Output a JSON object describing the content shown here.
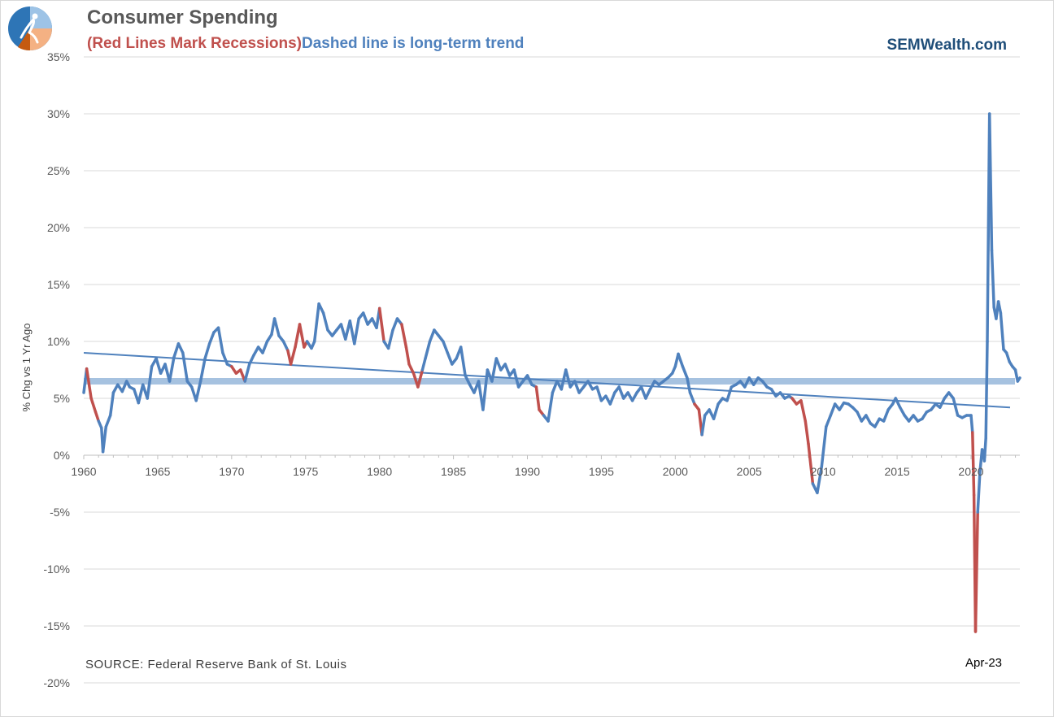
{
  "header": {
    "title": "Consumer Spending",
    "subtitle_red": "(Red Lines Mark Recessions)",
    "subtitle_blue": "Dashed line is long-term trend",
    "brand": "SEMWealth.com"
  },
  "footer": {
    "source": "SOURCE:  Federal Reserve Bank of St. Louis",
    "end_label": "Apr-23"
  },
  "colors": {
    "main_line": "#4f81bd",
    "recession_line": "#c0504d",
    "band": "#a6c2e0",
    "gridline": "#d9d9d9",
    "axis_text": "#595959"
  },
  "chart_data": {
    "type": "line",
    "title": "Consumer Spending",
    "ylabel": "% Chg vs 1 Yr Ago",
    "xlabel": "",
    "xlim": [
      1960,
      2023.3
    ],
    "ylim": [
      -20,
      35
    ],
    "y_ticks": [
      -20,
      -15,
      -10,
      -5,
      0,
      5,
      10,
      15,
      20,
      25,
      30,
      35
    ],
    "y_tick_labels": [
      "-20%",
      "-15%",
      "-10%",
      "-5%",
      "0%",
      "5%",
      "10%",
      "15%",
      "20%",
      "25%",
      "30%",
      "35%"
    ],
    "x_ticks": [
      1960,
      1965,
      1970,
      1975,
      1980,
      1985,
      1990,
      1995,
      2000,
      2005,
      2010,
      2015,
      2020
    ],
    "x_tick_labels": [
      "1960",
      "1965",
      "1970",
      "1975",
      "1980",
      "1985",
      "1990",
      "1995",
      "2000",
      "2005",
      "2010",
      "2015",
      "2020"
    ],
    "grid": true,
    "series": [
      {
        "style": "main",
        "points": [
          [
            1960.0,
            5.5
          ],
          [
            1960.2,
            7.6
          ],
          [
            1960.5,
            5.0
          ],
          [
            1960.8,
            3.8
          ],
          [
            1961.0,
            3.0
          ],
          [
            1961.2,
            2.4
          ],
          [
            1961.3,
            0.3
          ],
          [
            1961.5,
            2.5
          ],
          [
            1961.8,
            3.5
          ],
          [
            1962.0,
            5.5
          ],
          [
            1962.3,
            6.2
          ],
          [
            1962.6,
            5.6
          ],
          [
            1962.9,
            6.5
          ],
          [
            1963.1,
            6.0
          ],
          [
            1963.4,
            5.8
          ],
          [
            1963.7,
            4.6
          ],
          [
            1964.0,
            6.2
          ],
          [
            1964.3,
            5.0
          ],
          [
            1964.6,
            7.8
          ],
          [
            1964.9,
            8.5
          ],
          [
            1965.2,
            7.2
          ],
          [
            1965.5,
            8.0
          ],
          [
            1965.8,
            6.5
          ],
          [
            1966.1,
            8.6
          ],
          [
            1966.4,
            9.8
          ],
          [
            1966.7,
            9.0
          ],
          [
            1967.0,
            6.5
          ],
          [
            1967.3,
            6.0
          ],
          [
            1967.6,
            4.8
          ],
          [
            1967.9,
            6.5
          ],
          [
            1968.2,
            8.5
          ],
          [
            1968.5,
            9.8
          ],
          [
            1968.8,
            10.8
          ],
          [
            1969.1,
            11.2
          ],
          [
            1969.4,
            9.0
          ],
          [
            1969.7,
            8.0
          ],
          [
            1970.0,
            7.8
          ],
          [
            1970.3,
            7.2
          ],
          [
            1970.6,
            7.5
          ],
          [
            1970.9,
            6.5
          ],
          [
            1971.2,
            8.0
          ],
          [
            1971.5,
            8.8
          ],
          [
            1971.8,
            9.5
          ],
          [
            1972.1,
            9.0
          ],
          [
            1972.4,
            10.0
          ],
          [
            1972.7,
            10.6
          ],
          [
            1972.9,
            12.0
          ],
          [
            1973.2,
            10.5
          ],
          [
            1973.5,
            10.0
          ],
          [
            1973.8,
            9.2
          ],
          [
            1974.0,
            8.0
          ],
          [
            1974.3,
            9.5
          ],
          [
            1974.6,
            11.5
          ],
          [
            1974.9,
            9.5
          ],
          [
            1975.1,
            10.0
          ],
          [
            1975.4,
            9.4
          ],
          [
            1975.6,
            10.0
          ],
          [
            1975.9,
            13.3
          ],
          [
            1976.2,
            12.5
          ],
          [
            1976.5,
            11.0
          ],
          [
            1976.8,
            10.5
          ],
          [
            1977.1,
            11.0
          ],
          [
            1977.4,
            11.5
          ],
          [
            1977.7,
            10.2
          ],
          [
            1978.0,
            11.8
          ],
          [
            1978.3,
            9.8
          ],
          [
            1978.6,
            12.0
          ],
          [
            1978.9,
            12.5
          ],
          [
            1979.2,
            11.5
          ],
          [
            1979.5,
            12.0
          ],
          [
            1979.8,
            11.2
          ],
          [
            1980.0,
            12.9
          ],
          [
            1980.3,
            10.0
          ],
          [
            1980.6,
            9.4
          ],
          [
            1980.9,
            11.0
          ],
          [
            1981.2,
            12.0
          ],
          [
            1981.5,
            11.5
          ],
          [
            1981.8,
            9.5
          ],
          [
            1982.0,
            8.0
          ],
          [
            1982.3,
            7.2
          ],
          [
            1982.6,
            6.0
          ],
          [
            1982.9,
            7.5
          ],
          [
            1983.1,
            8.5
          ],
          [
            1983.4,
            10.0
          ],
          [
            1983.7,
            11.0
          ],
          [
            1984.0,
            10.5
          ],
          [
            1984.3,
            10.0
          ],
          [
            1984.6,
            9.0
          ],
          [
            1984.9,
            8.0
          ],
          [
            1985.2,
            8.5
          ],
          [
            1985.5,
            9.5
          ],
          [
            1985.8,
            7.0
          ],
          [
            1986.1,
            6.2
          ],
          [
            1986.4,
            5.5
          ],
          [
            1986.7,
            6.5
          ],
          [
            1987.0,
            4.0
          ],
          [
            1987.3,
            7.5
          ],
          [
            1987.6,
            6.5
          ],
          [
            1987.9,
            8.5
          ],
          [
            1988.2,
            7.5
          ],
          [
            1988.5,
            8.0
          ],
          [
            1988.8,
            7.0
          ],
          [
            1989.1,
            7.5
          ],
          [
            1989.4,
            6.0
          ],
          [
            1989.7,
            6.5
          ],
          [
            1990.0,
            7.0
          ],
          [
            1990.3,
            6.2
          ],
          [
            1990.6,
            6.0
          ],
          [
            1990.8,
            4.0
          ],
          [
            1991.1,
            3.5
          ],
          [
            1991.4,
            3.0
          ],
          [
            1991.7,
            5.5
          ],
          [
            1992.0,
            6.5
          ],
          [
            1992.3,
            5.8
          ],
          [
            1992.6,
            7.5
          ],
          [
            1992.9,
            6.0
          ],
          [
            1993.2,
            6.5
          ],
          [
            1993.5,
            5.5
          ],
          [
            1993.8,
            6.0
          ],
          [
            1994.1,
            6.5
          ],
          [
            1994.4,
            5.8
          ],
          [
            1994.7,
            6.0
          ],
          [
            1995.0,
            4.8
          ],
          [
            1995.3,
            5.2
          ],
          [
            1995.6,
            4.5
          ],
          [
            1995.9,
            5.5
          ],
          [
            1996.2,
            6.0
          ],
          [
            1996.5,
            5.0
          ],
          [
            1996.8,
            5.5
          ],
          [
            1997.1,
            4.8
          ],
          [
            1997.4,
            5.5
          ],
          [
            1997.7,
            6.0
          ],
          [
            1998.0,
            5.0
          ],
          [
            1998.3,
            5.8
          ],
          [
            1998.6,
            6.5
          ],
          [
            1998.9,
            6.2
          ],
          [
            1999.2,
            6.5
          ],
          [
            1999.5,
            6.8
          ],
          [
            1999.8,
            7.2
          ],
          [
            2000.0,
            7.8
          ],
          [
            2000.2,
            8.9
          ],
          [
            2000.5,
            7.8
          ],
          [
            2000.8,
            6.8
          ],
          [
            2001.0,
            5.5
          ],
          [
            2001.3,
            4.5
          ],
          [
            2001.6,
            4.0
          ],
          [
            2001.8,
            1.8
          ],
          [
            2002.0,
            3.5
          ],
          [
            2002.3,
            4.0
          ],
          [
            2002.6,
            3.2
          ],
          [
            2002.9,
            4.5
          ],
          [
            2003.2,
            5.0
          ],
          [
            2003.5,
            4.8
          ],
          [
            2003.8,
            6.0
          ],
          [
            2004.1,
            6.2
          ],
          [
            2004.4,
            6.5
          ],
          [
            2004.7,
            6.0
          ],
          [
            2005.0,
            6.8
          ],
          [
            2005.3,
            6.2
          ],
          [
            2005.6,
            6.8
          ],
          [
            2005.9,
            6.5
          ],
          [
            2006.2,
            6.0
          ],
          [
            2006.5,
            5.8
          ],
          [
            2006.8,
            5.2
          ],
          [
            2007.1,
            5.5
          ],
          [
            2007.4,
            5.0
          ],
          [
            2007.7,
            5.2
          ],
          [
            2007.9,
            5.0
          ],
          [
            2008.2,
            4.5
          ],
          [
            2008.5,
            4.8
          ],
          [
            2008.8,
            3.0
          ],
          [
            2009.0,
            1.0
          ],
          [
            2009.3,
            -2.5
          ],
          [
            2009.6,
            -3.3
          ],
          [
            2009.9,
            -1.0
          ],
          [
            2010.2,
            2.5
          ],
          [
            2010.5,
            3.5
          ],
          [
            2010.8,
            4.5
          ],
          [
            2011.1,
            4.0
          ],
          [
            2011.4,
            4.6
          ],
          [
            2011.7,
            4.5
          ],
          [
            2012.0,
            4.2
          ],
          [
            2012.3,
            3.8
          ],
          [
            2012.6,
            3.0
          ],
          [
            2012.9,
            3.5
          ],
          [
            2013.2,
            2.8
          ],
          [
            2013.5,
            2.5
          ],
          [
            2013.8,
            3.2
          ],
          [
            2014.1,
            3.0
          ],
          [
            2014.4,
            4.0
          ],
          [
            2014.7,
            4.5
          ],
          [
            2014.9,
            5.0
          ],
          [
            2015.2,
            4.2
          ],
          [
            2015.5,
            3.5
          ],
          [
            2015.8,
            3.0
          ],
          [
            2016.1,
            3.5
          ],
          [
            2016.4,
            3.0
          ],
          [
            2016.7,
            3.2
          ],
          [
            2017.0,
            3.8
          ],
          [
            2017.3,
            4.0
          ],
          [
            2017.6,
            4.5
          ],
          [
            2017.9,
            4.2
          ],
          [
            2018.2,
            5.0
          ],
          [
            2018.5,
            5.5
          ],
          [
            2018.8,
            5.0
          ],
          [
            2019.1,
            3.5
          ],
          [
            2019.4,
            3.3
          ],
          [
            2019.7,
            3.5
          ],
          [
            2020.0,
            3.5
          ],
          [
            2020.1,
            2.0
          ],
          [
            2020.2,
            -3.5
          ],
          [
            2020.3,
            -15.5
          ],
          [
            2020.45,
            -5.0
          ],
          [
            2020.6,
            -1.5
          ],
          [
            2020.75,
            0.5
          ],
          [
            2020.9,
            -0.5
          ],
          [
            2021.0,
            1.5
          ],
          [
            2021.1,
            10.0
          ],
          [
            2021.25,
            30.0
          ],
          [
            2021.4,
            18.0
          ],
          [
            2021.55,
            13.0
          ],
          [
            2021.7,
            12.0
          ],
          [
            2021.85,
            13.5
          ],
          [
            2022.0,
            12.5
          ],
          [
            2022.2,
            9.3
          ],
          [
            2022.4,
            9.0
          ],
          [
            2022.6,
            8.2
          ],
          [
            2022.8,
            7.8
          ],
          [
            2023.0,
            7.5
          ],
          [
            2023.15,
            6.5
          ],
          [
            2023.3,
            6.8
          ]
        ]
      },
      {
        "style": "recession",
        "ranges": [
          [
            1960.2,
            1961.1
          ],
          [
            1969.9,
            1970.9
          ],
          [
            1973.8,
            1975.2
          ],
          [
            1980.0,
            1980.5
          ],
          [
            1981.5,
            1982.9
          ],
          [
            1990.5,
            1991.2
          ],
          [
            2001.2,
            2001.9
          ],
          [
            2007.9,
            2009.5
          ],
          [
            2020.1,
            2020.45
          ]
        ]
      },
      {
        "style": "trend",
        "points": [
          [
            1960,
            9.0
          ],
          [
            2023.3,
            4.2
          ]
        ]
      },
      {
        "style": "band",
        "value": 6.5
      }
    ]
  }
}
